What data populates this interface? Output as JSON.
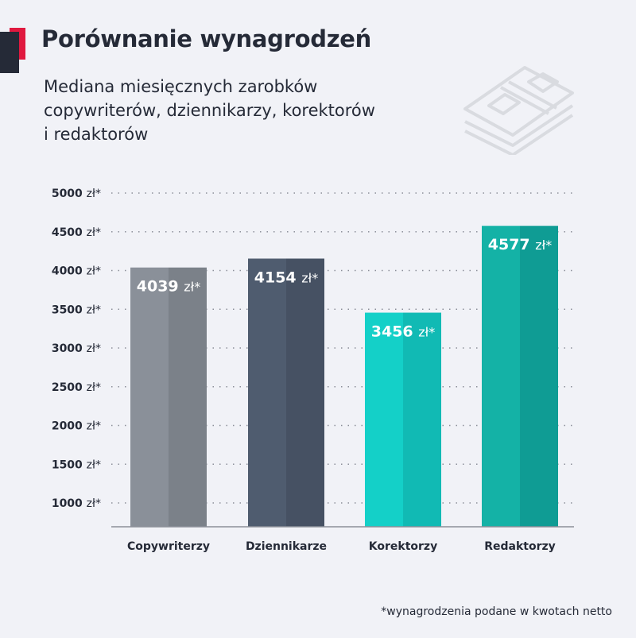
{
  "title": "Porównanie wynagrodzeń",
  "subtitle_lines": [
    "Mediana miesięcznych zarobków",
    "copywriterów, dziennikarzy, korektorów",
    "i redaktorów"
  ],
  "footnote": "*wynagrodzenia podane w kwotach netto",
  "decoration_icon": "money-stack-icon",
  "colors": {
    "background": "#f1f2f7",
    "title": "#252a37",
    "accent": "#e0193f"
  },
  "chart_data": {
    "type": "bar",
    "categories": [
      "Copywriterzy",
      "Dziennikarze",
      "Korektorzy",
      "Redaktorzy"
    ],
    "values": [
      4039,
      4154,
      3456,
      4577
    ],
    "value_labels": [
      "4039 zł*",
      "4154 zł*",
      "3456 zł*",
      "4577 zł*"
    ],
    "bar_colors": [
      [
        "#8a9099",
        "#7b8189"
      ],
      [
        "#4f5c6f",
        "#465163"
      ],
      [
        "#14d0c8",
        "#11bab4"
      ],
      [
        "#14b2a6",
        "#0f9c94"
      ]
    ],
    "y_ticks": [
      1000,
      1500,
      2000,
      2500,
      3000,
      3500,
      4000,
      4500,
      5000
    ],
    "y_tick_labels": [
      "1000 zł*",
      "1500 zł*",
      "2000 zł*",
      "2500 zł*",
      "3000 zł*",
      "3500 zł*",
      "4000 zł*",
      "4500 zł*",
      "5000 zł*"
    ],
    "ylim": [
      1000,
      5000
    ],
    "grid": "dotted horizontal",
    "xlabel": "",
    "ylabel": ""
  }
}
